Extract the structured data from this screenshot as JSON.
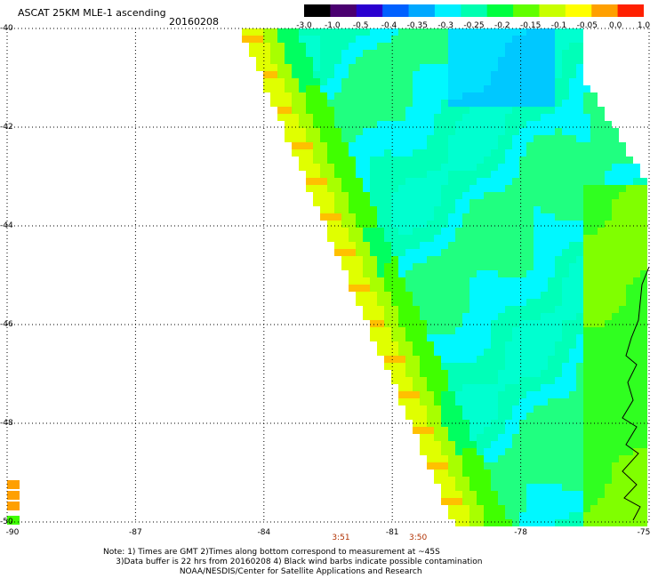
{
  "header": {
    "title": "ASCAT 25KM MLE-1 ascending",
    "date": "20160208"
  },
  "colorbar": {
    "labels": [
      "-3.0",
      "-1.0",
      "-0.5",
      "-0.4",
      "-0.35",
      "-0.3",
      "-0.25",
      "-0.2",
      "-0.15",
      "-0.1",
      "-0.05",
      "0.0",
      "1.0"
    ],
    "colors": [
      "#000000",
      "#4a0070",
      "#2a00d0",
      "#0060ff",
      "#00a8ff",
      "#00f0ff",
      "#00ffb0",
      "#00ff40",
      "#60ff00",
      "#c8ff00",
      "#ffff00",
      "#ffa000",
      "#ff2000"
    ]
  },
  "map": {
    "lat_labels": [
      "-40",
      "-42",
      "-44",
      "-46",
      "-48",
      "-50"
    ],
    "lon_labels": [
      "-90",
      "-87",
      "-84",
      "-81",
      "-78",
      "-75"
    ],
    "lat_range": [
      -50,
      -40
    ],
    "lon_range": [
      -90,
      -75
    ],
    "grid": true,
    "time_labels": [
      {
        "text": "3:51",
        "lon": -82.2
      },
      {
        "text": "3:50",
        "lon": -80.4
      }
    ]
  },
  "notes": {
    "line1": "Note: 1) Times are GMT 2)Times along bottom correspond to measurement at ~45S",
    "line2": "     3)Data buffer is 22 hrs from 20160208 4) Black wind barbs indicate possible contamination",
    "line3": "                              NOAA/NESDIS/Center for Satellite Applications and Research"
  }
}
